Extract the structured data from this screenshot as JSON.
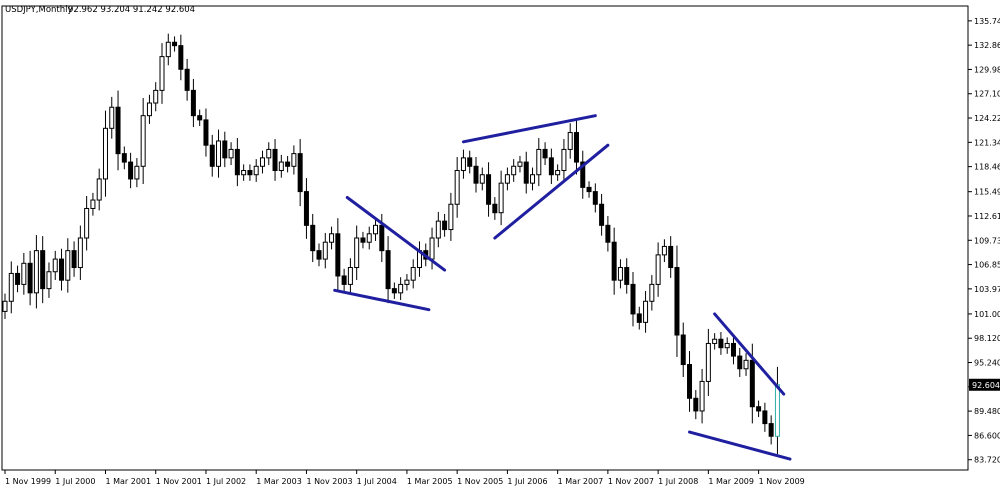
{
  "chart_data": {
    "type": "candlestick",
    "title": "USDJPY,Monthly",
    "ohlc_readout": "92.962 93.204 91.242 92.604",
    "current_price_label": "92.604",
    "current_price": 92.604,
    "y_ticks": [
      "135.740",
      "132.860",
      "129.980",
      "127.100",
      "124.220",
      "121.340",
      "118.460",
      "115.490",
      "112.610",
      "109.730",
      "106.850",
      "103.970",
      "101.000",
      "98.120",
      "95.240",
      "92.360",
      "89.480",
      "86.600",
      "83.720"
    ],
    "y_tick_values": [
      135.74,
      132.86,
      129.98,
      127.1,
      124.22,
      121.34,
      118.46,
      115.49,
      112.61,
      109.73,
      106.85,
      103.97,
      101.0,
      98.12,
      95.24,
      92.36,
      89.48,
      86.6,
      83.72
    ],
    "ylim": [
      82.5,
      137.5
    ],
    "x_ticks": [
      "1 Nov 1999",
      "1 Jul 2000",
      "1 Mar 2001",
      "1 Nov 2001",
      "1 Jul 2002",
      "1 Mar 2003",
      "1 Nov 2003",
      "1 Jul 2004",
      "1 Mar 2005",
      "1 Nov 2005",
      "1 Jul 2006",
      "1 Mar 2007",
      "1 Nov 2007",
      "1 Jul 2008",
      "1 Mar 2009",
      "1 Nov 2009"
    ],
    "x_tick_months": [
      0,
      8,
      16,
      24,
      32,
      40,
      48,
      56,
      64,
      72,
      80,
      88,
      96,
      104,
      112,
      120
    ],
    "start_month": "1999-11",
    "close": [
      102.5,
      105.8,
      104.5,
      107.0,
      103.5,
      108.5,
      104.0,
      106.0,
      107.5,
      105.0,
      108.5,
      106.5,
      110.0,
      113.5,
      114.5,
      117.0,
      123.0,
      125.5,
      120.0,
      119.0,
      117.0,
      118.5,
      124.5,
      126.0,
      127.5,
      131.5,
      133.2,
      132.8,
      130.0,
      127.5,
      124.5,
      124.0,
      121.0,
      118.5,
      121.5,
      119.5,
      120.5,
      117.5,
      118.0,
      117.5,
      118.5,
      119.5,
      120.5,
      118.0,
      119.0,
      118.5,
      120.0,
      115.5,
      111.5,
      108.5,
      107.5,
      109.5,
      110.5,
      105.5,
      104.5,
      106.5,
      110.0,
      109.5,
      110.5,
      111.5,
      108.5,
      104.0,
      103.5,
      104.5,
      105.0,
      106.5,
      108.5,
      107.5,
      110.0,
      112.0,
      111.0,
      114.0,
      118.0,
      119.5,
      118.5,
      116.5,
      117.5,
      114.0,
      113.0,
      116.5,
      117.5,
      118.5,
      119.0,
      116.5,
      117.5,
      120.5,
      119.5,
      117.5,
      118.0,
      120.5,
      122.5,
      119.0,
      116.0,
      115.5,
      114.0,
      111.5,
      109.5,
      105.0,
      106.5,
      104.5,
      101.0,
      100.0,
      102.5,
      104.5,
      108.0,
      109.0,
      106.5,
      98.5,
      95.0,
      91.0,
      89.5,
      93.0,
      97.5,
      98.0,
      97.0,
      97.5,
      96.0,
      94.5,
      95.5,
      90.0,
      89.5,
      88.0,
      86.5,
      92.604
    ]
  }
}
